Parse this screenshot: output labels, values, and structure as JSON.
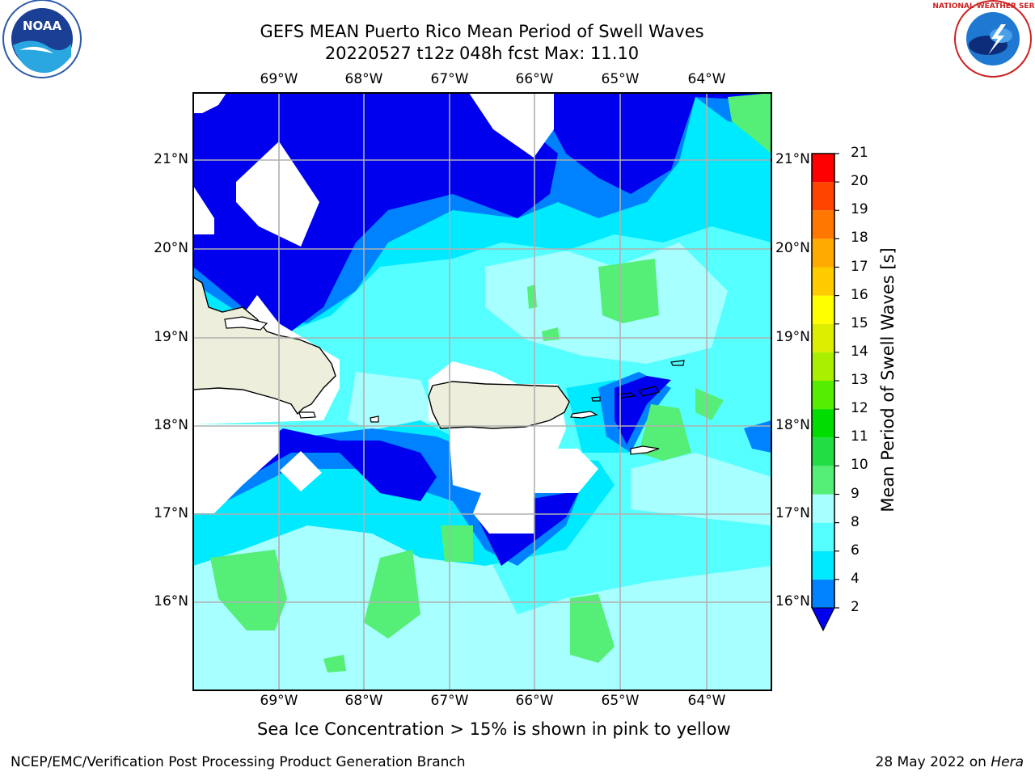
{
  "title": {
    "line1": "GEFS MEAN Puerto Rico Mean Period of Swell Waves",
    "line2": "20220527 t12z 048h fcst   Max: 11.10"
  },
  "map": {
    "lon_ticks": [
      "69°W",
      "68°W",
      "67°W",
      "66°W",
      "65°W",
      "64°W"
    ],
    "lat_ticks": [
      "21°N",
      "20°N",
      "19°N",
      "18°N",
      "17°N",
      "16°N"
    ],
    "extent": {
      "lon_min": -70.0,
      "lon_max": -63.3,
      "lat_min": 15.0,
      "lat_max": 21.75
    },
    "land_color": "#eeeedc",
    "grid_color": "#b0b0b0"
  },
  "colorbar": {
    "label": "Mean Period of Swell Waves [s]",
    "tick_labels": [
      "2",
      "4",
      "6",
      "8",
      "9",
      "10",
      "11",
      "12",
      "13",
      "14",
      "15",
      "16",
      "17",
      "18",
      "19",
      "20",
      "21"
    ],
    "levels": [
      2,
      4,
      6,
      8,
      9,
      10,
      11,
      12,
      13,
      14,
      15,
      16,
      17,
      18,
      19,
      20,
      21
    ],
    "colors": [
      "#0000ee",
      "#0082ff",
      "#00eaff",
      "#55ffff",
      "#a8ffff",
      "#55ee77",
      "#22dd44",
      "#00dd00",
      "#55ee00",
      "#aaee00",
      "#ddee00",
      "#ffff00",
      "#ffcc00",
      "#ffaa00",
      "#ff7700",
      "#ff4400",
      "#ff0000"
    ],
    "under_color": "#0000ee"
  },
  "footnote": "Sea Ice Concentration > 15% is shown in pink to yellow",
  "footer": {
    "left": "NCEP/EMC/Verification Post Processing Product Generation Branch",
    "right_date": "28 May 2022 on ",
    "right_host": "Hera"
  },
  "logos": {
    "left": "NOAA",
    "right": "NATIONAL WEATHER SERVICE"
  }
}
